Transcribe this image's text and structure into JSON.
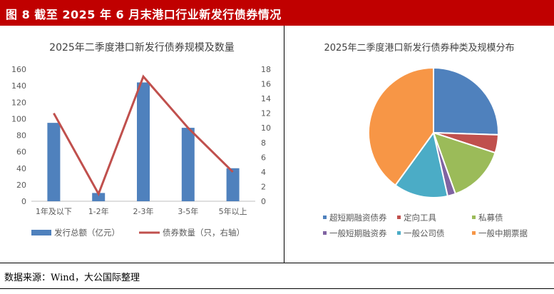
{
  "header": {
    "title": "图 8   截至 2025 年 6 月末港口行业新发行债券情况"
  },
  "source": "数据来源：Wind，大公国际整理",
  "chart_data": [
    {
      "type": "bar",
      "title": "2025年二季度港口新发行债券规模及数量",
      "categories": [
        "1年及以下",
        "1-2年",
        "2-3年",
        "3-5年",
        "5年以上"
      ],
      "series": [
        {
          "name": "发行总额（亿元）",
          "kind": "bar",
          "axis": "left",
          "color": "#4f81bd",
          "values": [
            95,
            10,
            144,
            89,
            40
          ]
        },
        {
          "name": "债券数量（只，右轴）",
          "kind": "line",
          "axis": "right",
          "color": "#c0504d",
          "values": [
            12,
            1,
            17,
            10,
            4
          ]
        }
      ],
      "y_left": {
        "min": 0,
        "max": 160,
        "ticks": [
          0,
          20,
          40,
          60,
          80,
          100,
          120,
          140,
          160
        ]
      },
      "y_right": {
        "min": 0,
        "max": 18,
        "ticks": [
          0,
          2,
          4,
          6,
          8,
          10,
          12,
          14,
          16,
          18
        ]
      },
      "legend": "bottom",
      "grid": false
    },
    {
      "type": "pie",
      "title": "2025年二季度港口新发行债券种类及规模分布",
      "slices": [
        {
          "name": "超短期融资债券",
          "value": 25.5,
          "color": "#4f81bd"
        },
        {
          "name": "定向工具",
          "value": 4.5,
          "color": "#c0504d"
        },
        {
          "name": "私募债",
          "value": 14.5,
          "color": "#9bbb59"
        },
        {
          "name": "一般短期融资券",
          "value": 2.0,
          "color": "#8064a2"
        },
        {
          "name": "一般公司债",
          "value": 13.5,
          "color": "#4bacc6"
        },
        {
          "name": "一般中期票据",
          "value": 40.0,
          "color": "#f79646"
        }
      ],
      "legend": "bottom"
    }
  ]
}
